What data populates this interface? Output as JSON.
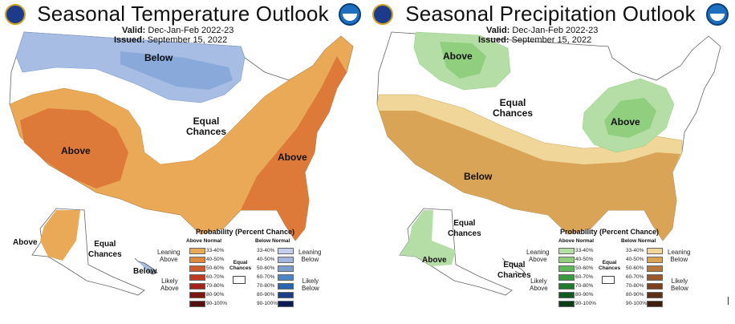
{
  "temperature": {
    "title": "Seasonal Temperature Outlook",
    "valid_label": "Valid:",
    "valid_value": "Dec-Jan-Feb 2022-23",
    "issued_label": "Issued:",
    "issued_value": "September 15, 2022",
    "regions": {
      "below": "Below",
      "equal_1": "Equal",
      "equal_2": "Chances",
      "above_west": "Above",
      "above_east": "Above",
      "above_alaska": "Above",
      "equal_ak_1": "Equal",
      "equal_ak_2": "Chances",
      "below_hawaii": "Below"
    },
    "legend": {
      "title": "Probability (Percent Chance)",
      "left_header": "Above Normal",
      "right_header": "Below Normal",
      "left_bins": [
        "33-40%",
        "40-50%",
        "50-60%",
        "60-70%",
        "70-80%",
        "80-90%",
        "90-100%"
      ],
      "right_bins": [
        "33-40%",
        "40-50%",
        "50-60%",
        "60-70%",
        "70-80%",
        "80-90%",
        "90-100%"
      ],
      "left_colors": [
        "#e9a957",
        "#dd8a3f",
        "#cf5a2e",
        "#c03a22",
        "#a3221a",
        "#7d1713",
        "#561010"
      ],
      "right_colors": [
        "#c4cde9",
        "#a3b5dc",
        "#7d9cd0",
        "#4d86c4",
        "#2a66b0",
        "#1d3f8a",
        "#0c1d55"
      ],
      "side_left_1": "Leaning",
      "side_left_2": "Above",
      "side_left_3": "Likely",
      "side_left_4": "Above",
      "side_right_1": "Leaning",
      "side_right_2": "Below",
      "side_right_3": "Likely",
      "side_right_4": "Below",
      "equal_1": "Equal",
      "equal_2": "Chances"
    }
  },
  "precipitation": {
    "title": "Seasonal Precipitation Outlook",
    "valid_label": "Valid:",
    "valid_value": "Dec-Jan-Feb 2022-23",
    "issued_label": "Issued:",
    "issued_value": "September 15, 2022",
    "regions": {
      "above_nw": "Above",
      "equal_1": "Equal",
      "equal_2": "Chances",
      "above_ov": "Above",
      "below_south": "Below",
      "equal_ak_1": "Equal",
      "equal_ak_2": "Chances",
      "above_alaska": "Above",
      "equal_hi_1": "Equal",
      "equal_hi_2": "Chances"
    },
    "legend": {
      "title": "Probability (Percent Chance)",
      "left_header": "Above Normal",
      "right_header": "Below Normal",
      "left_bins": [
        "33-40%",
        "40-50%",
        "50-60%",
        "60-70%",
        "70-80%",
        "80-90%",
        "90-100%"
      ],
      "right_bins": [
        "33-40%",
        "40-50%",
        "50-60%",
        "60-70%",
        "70-80%",
        "80-90%",
        "90-100%"
      ],
      "left_colors": [
        "#b5dea6",
        "#8fcf7e",
        "#5fb85a",
        "#389a3f",
        "#1f7a2e",
        "#145b22",
        "#0b3d16"
      ],
      "right_colors": [
        "#f1d69a",
        "#d9a456",
        "#b8763a",
        "#99582a",
        "#7c421f",
        "#5e3017",
        "#40200f"
      ],
      "side_left_1": "Leaning",
      "side_left_2": "Above",
      "side_left_3": "Likely",
      "side_left_4": "Above",
      "side_right_1": "Leaning",
      "side_right_2": "Below",
      "side_right_3": "Likely",
      "side_right_4": "Below",
      "equal_1": "Equal",
      "equal_2": "Chances"
    }
  }
}
